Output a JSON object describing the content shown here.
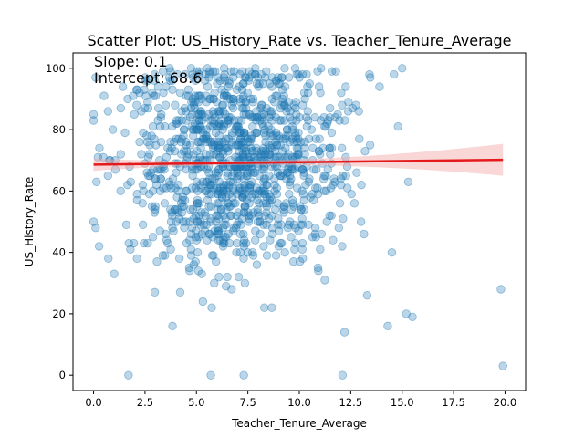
{
  "chart_data": {
    "type": "scatter",
    "title": "Scatter Plot: US_History_Rate vs. Teacher_Tenure_Average",
    "xlabel": "Teacher_Tenure_Average",
    "ylabel": "US_History_Rate",
    "xlim": [
      -1.0,
      21.0
    ],
    "ylim": [
      -5.0,
      105.0
    ],
    "xticks": [
      0.0,
      2.5,
      5.0,
      7.5,
      10.0,
      12.5,
      15.0,
      17.5,
      20.0
    ],
    "xtick_labels": [
      "0.0",
      "2.5",
      "5.0",
      "7.5",
      "10.0",
      "12.5",
      "15.0",
      "17.5",
      "20.0"
    ],
    "yticks": [
      0,
      20,
      40,
      60,
      80,
      100
    ],
    "ytick_labels": [
      "0",
      "20",
      "40",
      "60",
      "80",
      "100"
    ],
    "grid": false,
    "annotations": {
      "slope_text": "Slope: 0.1",
      "intercept_text": "Intercept: 68.6"
    },
    "regression": {
      "slope": 0.08,
      "intercept": 68.6,
      "x_range": [
        0.0,
        19.9
      ],
      "band_halfwidth_center": 0.7,
      "band_halfwidth_edge": 5.2,
      "line_color": "#e41a1c",
      "band_color": "#f4a7a7"
    },
    "point_color": "#1f77b4",
    "notable_points": [
      {
        "x": 19.9,
        "y": 3
      },
      {
        "x": 19.8,
        "y": 28
      },
      {
        "x": 15.5,
        "y": 19
      },
      {
        "x": 15.2,
        "y": 20
      },
      {
        "x": 15.3,
        "y": 63
      },
      {
        "x": 14.3,
        "y": 16
      },
      {
        "x": 14.5,
        "y": 40
      },
      {
        "x": 14.8,
        "y": 81
      },
      {
        "x": 15.0,
        "y": 100
      },
      {
        "x": 14.6,
        "y": 98
      },
      {
        "x": 13.9,
        "y": 94
      },
      {
        "x": 12.1,
        "y": 0
      },
      {
        "x": 7.3,
        "y": 0
      },
      {
        "x": 5.7,
        "y": 0
      },
      {
        "x": 1.7,
        "y": 0
      },
      {
        "x": 0.1,
        "y": 97
      },
      {
        "x": 0.0,
        "y": 50
      },
      {
        "x": 0.1,
        "y": 48
      },
      {
        "x": 0.0,
        "y": 83
      },
      {
        "x": 13.3,
        "y": 26
      },
      {
        "x": 13.0,
        "y": 50
      },
      {
        "x": 12.2,
        "y": 14
      }
    ],
    "bulk_sample": {
      "count": 1150,
      "x_mean": 6.9,
      "x_sd": 2.6,
      "y_mean": 70,
      "y_sd": 18
    }
  }
}
